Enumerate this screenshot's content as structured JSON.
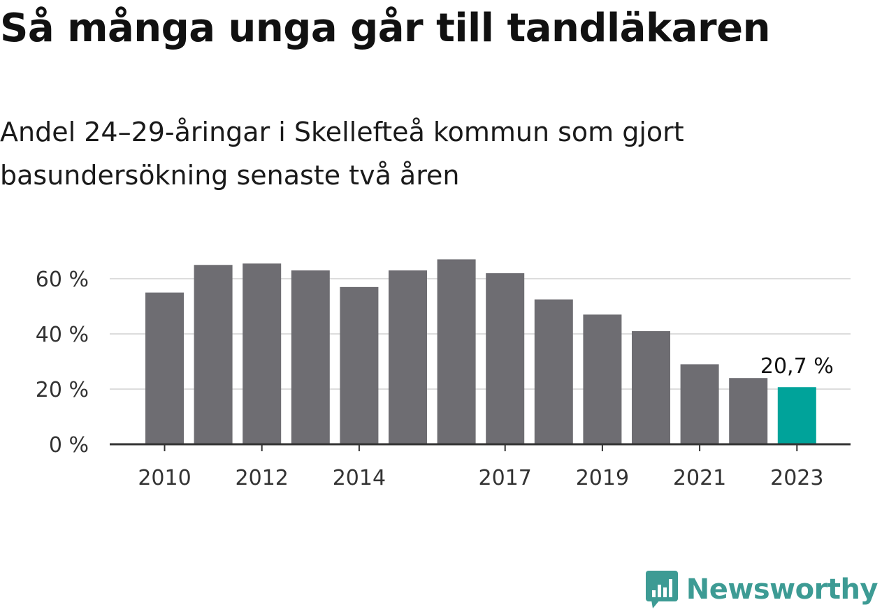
{
  "header": {
    "title": "Så många unga går till tandläkaren",
    "subtitle_lines": [
      "Andel 24–29-åringar i Skellefteå kommun som gjort",
      "basundersökning senaste två åren"
    ]
  },
  "chart_data": {
    "type": "bar",
    "categories": [
      "2010",
      "2011",
      "2012",
      "2013",
      "2014",
      "2015",
      "2016",
      "2017",
      "2018",
      "2019",
      "2020",
      "2021",
      "2022",
      "2023"
    ],
    "values": [
      55,
      65,
      65.5,
      63,
      57,
      63,
      67,
      62,
      52.5,
      47,
      41,
      29,
      24,
      20.7
    ],
    "x_tick_labels": [
      "2010",
      "2012",
      "2014",
      "2017",
      "2019",
      "2021",
      "2023"
    ],
    "y_ticks": [
      0,
      20,
      40,
      60
    ],
    "y_tick_labels": [
      "0 %",
      "20 %",
      "40 %",
      "60 %"
    ],
    "ylim": [
      0,
      70
    ],
    "grid": true,
    "highlight_index": 13,
    "highlight_label": "20,7 %",
    "colors": {
      "bar": "#6e6d72",
      "highlight": "#00a39a",
      "grid": "#dddddd",
      "axis": "#333333"
    }
  },
  "footer": {
    "logo_text": "Newsworthy",
    "logo_icon": "bar-chart-speech-bubble-icon"
  }
}
